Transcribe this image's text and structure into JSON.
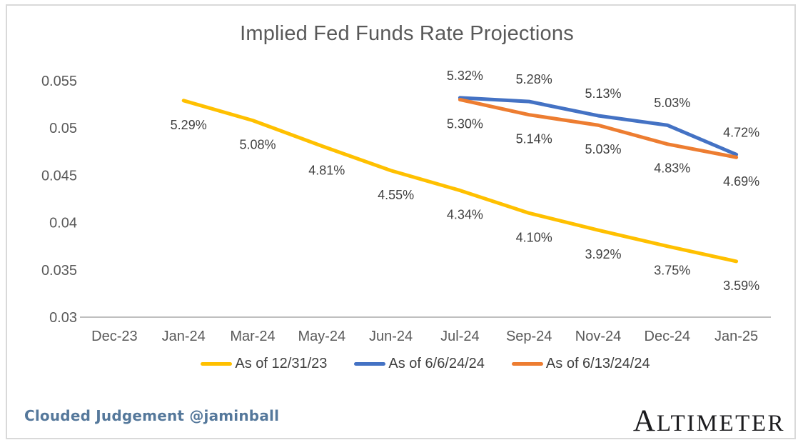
{
  "chart_data": {
    "type": "line",
    "title": "Implied Fed Funds Rate Projections",
    "categories": [
      "Dec-23",
      "Jan-24",
      "Mar-24",
      "May-24",
      "Jun-24",
      "Jul-24",
      "Sep-24",
      "Nov-24",
      "Dec-24",
      "Jan-25"
    ],
    "y_axis": {
      "min": 0.03,
      "max": 0.055,
      "ticks": [
        "0.055",
        "0.05",
        "0.045",
        "0.04",
        "0.035",
        "0.03"
      ]
    },
    "grid": "off",
    "legend_position": "bottom",
    "series": [
      {
        "name": "As of 12/31/23",
        "color": "#FFC000",
        "start_index": 1,
        "values": [
          5.29,
          5.08,
          4.81,
          4.55,
          4.34,
          4.1,
          3.92,
          3.75,
          3.59
        ],
        "labels": [
          "5.29%",
          "5.08%",
          "4.81%",
          "4.55%",
          "4.34%",
          "4.10%",
          "3.92%",
          "3.75%",
          "3.59%"
        ],
        "label_position": "below"
      },
      {
        "name": "As of 6/6/24/24",
        "color": "#4472C4",
        "start_index": 5,
        "values": [
          5.32,
          5.28,
          5.13,
          5.03,
          4.72
        ],
        "labels": [
          "5.32%",
          "5.28%",
          "5.13%",
          "5.03%",
          "4.72%"
        ],
        "label_position": "above"
      },
      {
        "name": "As of 6/13/24/24",
        "color": "#ED7D31",
        "start_index": 5,
        "values": [
          5.3,
          5.14,
          5.03,
          4.83,
          4.69
        ],
        "labels": [
          "5.30%",
          "5.14%",
          "5.03%",
          "4.83%",
          "4.69%"
        ],
        "label_position": "below"
      }
    ]
  },
  "footer": {
    "credit": "Clouded Judgement @jaminball",
    "logo_first_letter": "A",
    "logo_rest": "LTIMETER"
  },
  "colors": {
    "title_text": "#595959",
    "axis_labels": "#595959",
    "data_labels": "#404040",
    "axis_line": "#BFBFBF",
    "frame_border": "#D9D9D9",
    "credit_text": "#55789B",
    "logo_text": "#1B1B1E"
  }
}
